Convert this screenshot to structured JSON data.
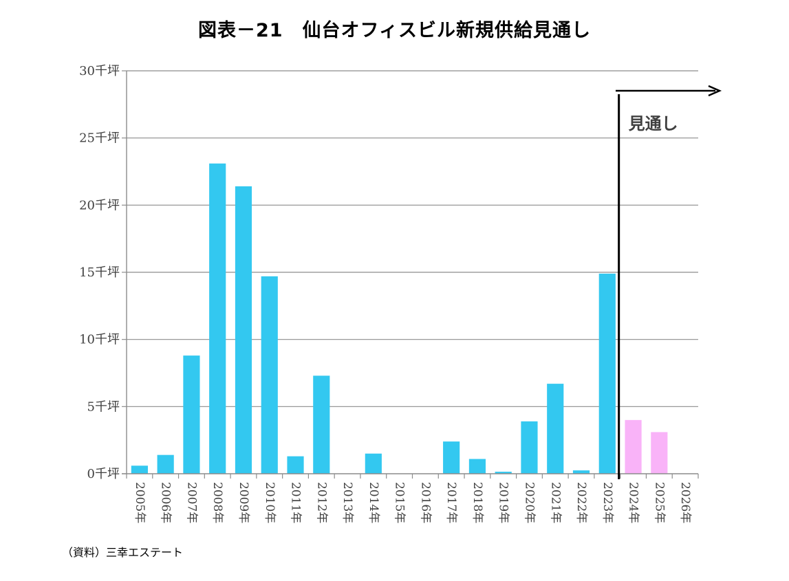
{
  "chart_data": {
    "type": "bar",
    "title": "図表－21　仙台オフィスビル新規供給見通し",
    "xlabel": "",
    "ylabel": "",
    "ylim": [
      0,
      30
    ],
    "yticks": [
      0,
      5,
      10,
      15,
      20,
      25,
      30
    ],
    "ytick_suffix": "千坪",
    "grid": true,
    "categories": [
      "2005年",
      "2006年",
      "2007年",
      "2008年",
      "2009年",
      "2010年",
      "2011年",
      "2012年",
      "2013年",
      "2014年",
      "2015年",
      "2016年",
      "2017年",
      "2018年",
      "2019年",
      "2020年",
      "2021年",
      "2022年",
      "2023年",
      "2024年",
      "2025年",
      "2026年"
    ],
    "values": [
      0.6,
      1.4,
      8.8,
      23.1,
      21.4,
      14.7,
      1.3,
      7.3,
      0,
      1.5,
      0,
      0,
      2.4,
      1.1,
      0.15,
      3.9,
      6.7,
      0.25,
      14.9,
      4.0,
      3.1,
      0
    ],
    "forecast_from": "2024年",
    "forecast_label": "見通し",
    "colors": {
      "actual": "#33c8f0",
      "forecast": "#f9b3f8",
      "grid": "#8c8c8c",
      "axis": "#8c8c8c",
      "divider": "#000000"
    },
    "source": "（資料）三幸エステート"
  }
}
